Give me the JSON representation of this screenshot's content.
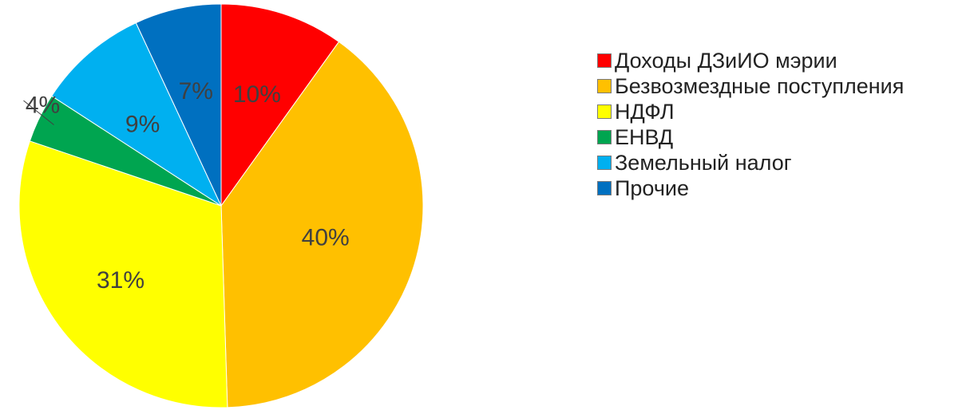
{
  "chart_data": {
    "type": "pie",
    "start_angle_deg": 0,
    "direction": "clockwise",
    "slices": [
      {
        "label": "Доходы ДЗиИО мэрии",
        "value": 10,
        "display": "10%",
        "color": "#ff0000"
      },
      {
        "label": "Безвозмездные поступления",
        "value": 40,
        "display": "40%",
        "color": "#ffc000"
      },
      {
        "label": "НДФЛ",
        "value": 31,
        "display": "31%",
        "color": "#ffff00"
      },
      {
        "label": "ЕНВД",
        "value": 4,
        "display": "4%",
        "color": "#00a550"
      },
      {
        "label": "Земельный налог",
        "value": 9,
        "display": "9%",
        "color": "#00b0f0"
      },
      {
        "label": "Прочие",
        "value": 7,
        "display": "7%",
        "color": "#0070c0"
      }
    ],
    "legend_position": "right"
  }
}
